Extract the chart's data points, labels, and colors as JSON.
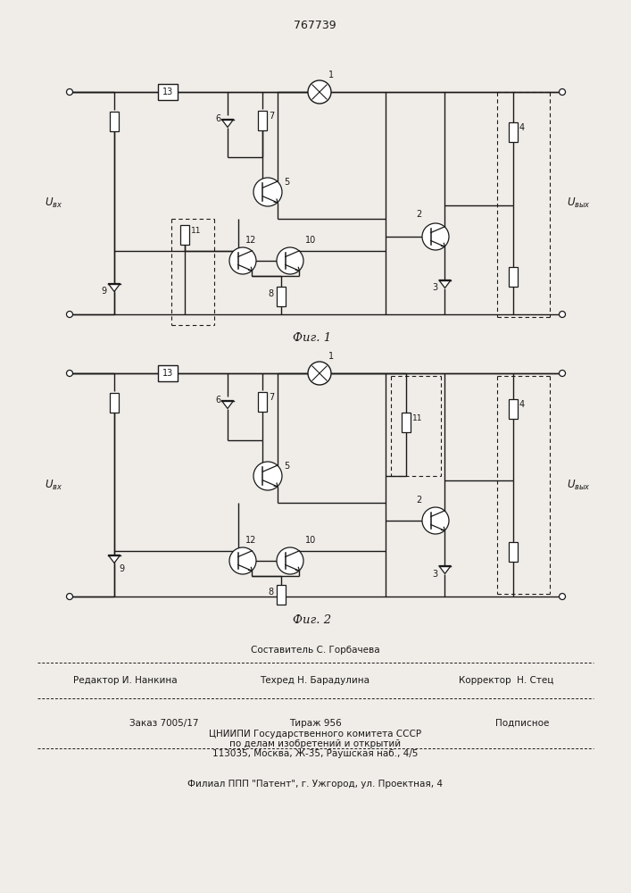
{
  "title": "767739",
  "fig1_caption": "Фиг. 1",
  "fig2_caption": "Фиг. 2",
  "footer_line1": "Составитель С. Горбачева",
  "footer_line2_left": "Редактор И. Нанкина",
  "footer_line2_mid": "Техред Н. Барадулина",
  "footer_line2_right": "Корректор  Н. Стец",
  "footer_line3_left": "Заказ 7005/17",
  "footer_line3_mid": "Тираж 956",
  "footer_line3_right": "Подписное",
  "footer_line4": "ЦНИИПИ Государственного комитета СССР",
  "footer_line5": "по делам изобретений и открытий",
  "footer_line6": "113035, Москва, Ж-35, Раушская наб., 4/5",
  "footer_line7": "Филиал ППП \"Патент\", г. Ужгород, ул. Проектная, 4",
  "bg_color": "#f0ede8",
  "line_color": "#1a1a1a"
}
